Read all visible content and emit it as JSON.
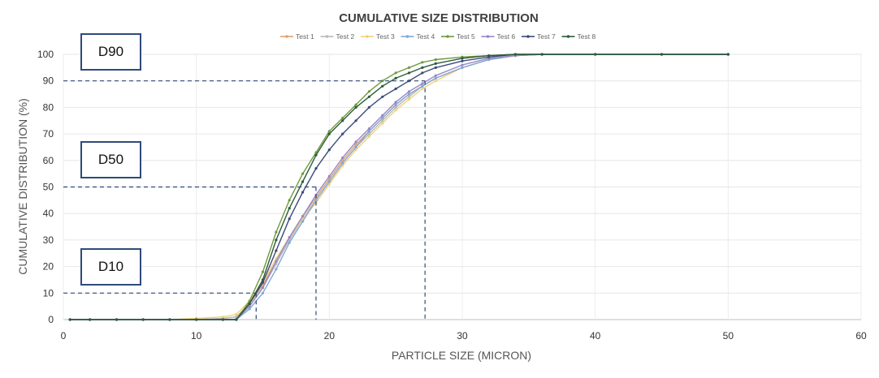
{
  "chart_data": {
    "type": "line",
    "title": "CUMULATIVE SIZE DISTRIBUTION",
    "xlabel": "PARTICLE SIZE (MICRON)",
    "ylabel": "CUMULATIVE DISTRIBUTION (%)",
    "xlim": [
      0,
      60
    ],
    "ylim": [
      0,
      100
    ],
    "x_ticks": [
      "0",
      "10",
      "20",
      "30",
      "40",
      "50",
      "60"
    ],
    "y_ticks": [
      "0",
      "10",
      "20",
      "30",
      "40",
      "50",
      "60",
      "70",
      "80",
      "90",
      "100"
    ],
    "grid": true,
    "legend_position": "top",
    "series": [
      {
        "name": "Test 1",
        "color": "#e0a070",
        "x": [
          0.5,
          2,
          4,
          6,
          8,
          10,
          12,
          13,
          14,
          15,
          16,
          17,
          18,
          19,
          20,
          21,
          22,
          23,
          24,
          25,
          26,
          27,
          28,
          30,
          32,
          34,
          36,
          40,
          45,
          50
        ],
        "y": [
          0,
          0,
          0,
          0,
          0,
          0,
          0.5,
          1,
          6,
          13,
          22,
          31,
          39,
          46,
          53,
          60,
          66,
          71,
          76,
          81,
          85,
          88,
          91,
          95,
          98,
          99.5,
          100,
          100,
          100,
          100
        ]
      },
      {
        "name": "Test 2",
        "color": "#b9b9b9",
        "x": [
          0.5,
          2,
          4,
          6,
          8,
          10,
          12,
          13,
          14,
          15,
          16,
          17,
          18,
          19,
          20,
          21,
          22,
          23,
          24,
          25,
          26,
          27,
          28,
          30,
          32,
          34,
          36,
          40,
          45,
          50
        ],
        "y": [
          0,
          0,
          0,
          0,
          0,
          0,
          0.5,
          1,
          5,
          12,
          21,
          30,
          38,
          45,
          52,
          59,
          65,
          70,
          75,
          80,
          84,
          88,
          91,
          95,
          98,
          99.5,
          100,
          100,
          100,
          100
        ]
      },
      {
        "name": "Test 3",
        "color": "#f0d27a",
        "x": [
          0.5,
          2,
          4,
          6,
          8,
          10,
          12,
          13,
          14,
          15,
          16,
          17,
          18,
          19,
          20,
          21,
          22,
          23,
          24,
          25,
          26,
          27,
          28,
          30,
          32,
          34,
          36,
          40,
          45,
          50
        ],
        "y": [
          0,
          0,
          0,
          0,
          0,
          0.5,
          1,
          2,
          7,
          14,
          23,
          31,
          38,
          44,
          51,
          58,
          64,
          69,
          74,
          79,
          83,
          87,
          90,
          95,
          98,
          99.5,
          100,
          100,
          100,
          100
        ]
      },
      {
        "name": "Test 4",
        "color": "#7ea9d6",
        "x": [
          0.5,
          2,
          4,
          6,
          8,
          10,
          12,
          13,
          14,
          15,
          16,
          17,
          18,
          19,
          20,
          21,
          22,
          23,
          24,
          25,
          26,
          27,
          28,
          30,
          32,
          34,
          36,
          40,
          45,
          50
        ],
        "y": [
          0,
          0,
          0,
          0,
          0,
          0,
          0,
          0,
          4,
          10,
          19,
          29,
          37,
          45,
          52,
          59,
          65,
          71,
          76,
          81,
          85,
          88,
          91,
          95,
          98,
          99.5,
          100,
          100,
          100,
          100
        ]
      },
      {
        "name": "Test 5",
        "color": "#6f9a3f",
        "x": [
          0.5,
          2,
          4,
          6,
          8,
          10,
          12,
          13,
          14,
          15,
          16,
          17,
          18,
          19,
          20,
          21,
          22,
          23,
          24,
          25,
          26,
          27,
          28,
          30,
          32,
          34,
          36,
          40,
          45,
          50
        ],
        "y": [
          0,
          0,
          0,
          0,
          0,
          0,
          0,
          0,
          7,
          18,
          33,
          45,
          55,
          63,
          71,
          76,
          81,
          86,
          90,
          93,
          95,
          97,
          98,
          99,
          99.5,
          100,
          100,
          100,
          100,
          100
        ]
      },
      {
        "name": "Test 6",
        "color": "#9a86c8",
        "x": [
          0.5,
          2,
          4,
          6,
          8,
          10,
          12,
          13,
          14,
          15,
          16,
          17,
          18,
          19,
          20,
          21,
          22,
          23,
          24,
          25,
          26,
          27,
          28,
          30,
          32,
          34,
          36,
          40,
          45,
          50
        ],
        "y": [
          0,
          0,
          0,
          0,
          0,
          0,
          0,
          0,
          5,
          12,
          22,
          31,
          39,
          47,
          54,
          61,
          67,
          72,
          77,
          82,
          86,
          89,
          92,
          96,
          98.5,
          99.5,
          100,
          100,
          100,
          100
        ]
      },
      {
        "name": "Test 7",
        "color": "#3b4a7a",
        "x": [
          0.5,
          2,
          4,
          6,
          8,
          10,
          12,
          13,
          14,
          15,
          16,
          17,
          18,
          19,
          20,
          21,
          22,
          23,
          24,
          25,
          26,
          27,
          28,
          30,
          32,
          34,
          36,
          40,
          45,
          50
        ],
        "y": [
          0,
          0,
          0,
          0,
          0,
          0,
          0,
          0,
          6,
          14,
          26,
          38,
          48,
          57,
          64,
          70,
          75,
          80,
          84,
          87,
          90,
          93,
          95,
          97.5,
          99,
          100,
          100,
          100,
          100,
          100
        ]
      },
      {
        "name": "Test 8",
        "color": "#2e5b3a",
        "x": [
          0.5,
          2,
          4,
          6,
          8,
          10,
          12,
          13,
          14,
          15,
          16,
          17,
          18,
          19,
          20,
          21,
          22,
          23,
          24,
          25,
          26,
          27,
          28,
          30,
          32,
          34,
          36,
          40,
          45,
          50
        ],
        "y": [
          0,
          0,
          0,
          0,
          0,
          0,
          0,
          0,
          6,
          15,
          30,
          42,
          52,
          62,
          70,
          75,
          80,
          84,
          88,
          91,
          93,
          95,
          96.5,
          98.5,
          99.5,
          100,
          100,
          100,
          100,
          100
        ]
      }
    ],
    "reference_lines": [
      {
        "label": "D90",
        "y": 90,
        "x": 27.2
      },
      {
        "label": "D50",
        "y": 50,
        "x": 19
      },
      {
        "label": "D10",
        "y": 10,
        "x": 14.5
      }
    ],
    "reference_color": "#2f4a7a"
  }
}
